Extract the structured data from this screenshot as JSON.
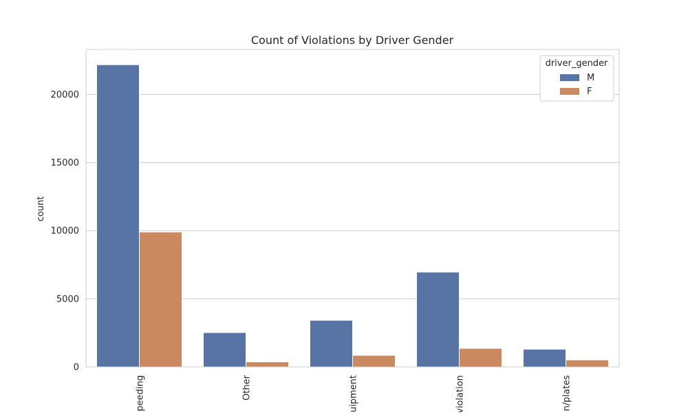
{
  "chart_data": {
    "type": "bar",
    "title": "Count of Violations by Driver Gender",
    "xlabel": "",
    "ylabel": "count",
    "categories": [
      "Speeding",
      "Other",
      "Equipment",
      "Moving violation",
      "Registration/plates"
    ],
    "category_labels_visible": [
      "peeding",
      "Other",
      "uipment",
      "violation",
      "n/plates"
    ],
    "series": [
      {
        "name": "M",
        "color": "#5874a5",
        "values": [
          22180,
          2520,
          3420,
          6960,
          1300
        ]
      },
      {
        "name": "F",
        "color": "#cb895f",
        "values": [
          9900,
          370,
          850,
          1360,
          510
        ]
      }
    ],
    "ylim": [
      0,
      23300
    ],
    "yticks": [
      0,
      5000,
      10000,
      15000,
      20000
    ],
    "ytick_labels": [
      "0",
      "5000",
      "10000",
      "15000",
      "20000"
    ],
    "grid": "horizontal",
    "legend": {
      "title": "driver_gender",
      "placement": "top-right"
    },
    "style": {
      "grid_color": "#cccccc",
      "frame_color": "#cccccc"
    }
  }
}
